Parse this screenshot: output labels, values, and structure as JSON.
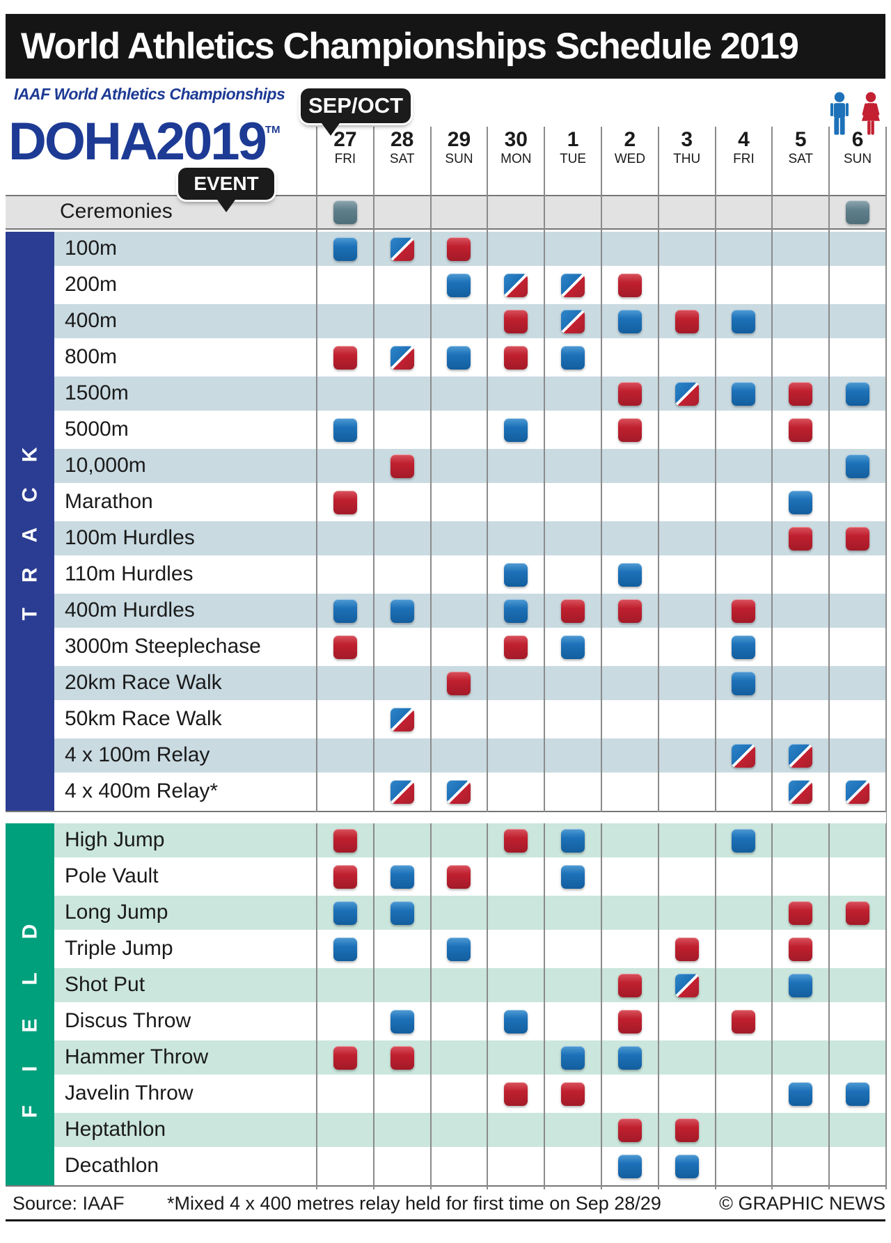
{
  "title": "World Athletics Championships Schedule 2019",
  "logo": {
    "line1": "IAAF World Athletics Championships",
    "line2": "DOHA2019",
    "tm": "TM"
  },
  "callouts": {
    "month": "SEP/OCT",
    "event": "EVENT"
  },
  "days": [
    {
      "date": "27",
      "day": "FRI"
    },
    {
      "date": "28",
      "day": "SAT"
    },
    {
      "date": "29",
      "day": "SUN"
    },
    {
      "date": "30",
      "day": "MON"
    },
    {
      "date": "1",
      "day": "TUE"
    },
    {
      "date": "2",
      "day": "WED"
    },
    {
      "date": "3",
      "day": "THU"
    },
    {
      "date": "4",
      "day": "FRI"
    },
    {
      "date": "5",
      "day": "SAT"
    },
    {
      "date": "6",
      "day": "SUN"
    }
  ],
  "legend": {
    "men_color": "#1d71b8",
    "women_color": "#c32031",
    "ceremony_color": "#5d7c88",
    "track_bar_color": "#2b3d92",
    "field_bar_color": "#00a07d",
    "track_shade_color": "#c9dae1",
    "field_shade_color": "#cbe6dc"
  },
  "ceremonies": {
    "label": "Ceremonies",
    "cells": {
      "0": "ceremony",
      "9": "ceremony"
    }
  },
  "sections": [
    {
      "label": "TRACK",
      "bar_color": "#2b3d92",
      "shade_color": "#c9dae1",
      "letter_spacing": "36px",
      "rows": [
        {
          "label": "100m",
          "cells": {
            "0": "men",
            "1": "both",
            "2": "women"
          }
        },
        {
          "label": "200m",
          "cells": {
            "2": "men",
            "3": "both",
            "4": "both",
            "5": "women"
          }
        },
        {
          "label": "400m",
          "cells": {
            "3": "women",
            "4": "both",
            "5": "men",
            "6": "women",
            "7": "men"
          }
        },
        {
          "label": "800m",
          "cells": {
            "0": "women",
            "1": "both",
            "2": "men",
            "3": "women",
            "4": "men"
          }
        },
        {
          "label": "1500m",
          "cells": {
            "5": "women",
            "6": "both",
            "7": "men",
            "8": "women",
            "9": "men"
          }
        },
        {
          "label": "5000m",
          "cells": {
            "0": "men",
            "3": "men",
            "5": "women",
            "8": "women"
          }
        },
        {
          "label": "10,000m",
          "cells": {
            "1": "women",
            "9": "men"
          }
        },
        {
          "label": "Marathon",
          "cells": {
            "0": "women",
            "8": "men"
          }
        },
        {
          "label": "100m Hurdles",
          "cells": {
            "8": "women",
            "9": "women"
          }
        },
        {
          "label": "110m Hurdles",
          "cells": {
            "3": "men",
            "5": "men"
          }
        },
        {
          "label": "400m Hurdles",
          "cells": {
            "0": "men",
            "1": "men",
            "3": "men",
            "4": "women",
            "5": "women",
            "7": "women"
          }
        },
        {
          "label": "3000m Steeplechase",
          "cells": {
            "0": "women",
            "3": "women",
            "4": "men",
            "7": "men"
          }
        },
        {
          "label": "20km Race Walk",
          "cells": {
            "2": "women",
            "7": "men"
          }
        },
        {
          "label": "50km Race Walk",
          "cells": {
            "1": "both"
          }
        },
        {
          "label": "4 x 100m Relay",
          "cells": {
            "7": "both",
            "8": "both"
          }
        },
        {
          "label": "4 x 400m Relay*",
          "cells": {
            "1": "both",
            "2": "both",
            "8": "both",
            "9": "both"
          }
        }
      ]
    },
    {
      "label": "FIELD",
      "bar_color": "#00a07d",
      "shade_color": "#cbe6dc",
      "letter_spacing": "48px",
      "rows": [
        {
          "label": "High Jump",
          "cells": {
            "0": "women",
            "3": "women",
            "4": "men",
            "7": "men"
          }
        },
        {
          "label": "Pole Vault",
          "cells": {
            "0": "women",
            "1": "men",
            "2": "women",
            "4": "men"
          }
        },
        {
          "label": "Long Jump",
          "cells": {
            "0": "men",
            "1": "men",
            "8": "women",
            "9": "women"
          }
        },
        {
          "label": "Triple Jump",
          "cells": {
            "0": "men",
            "2": "men",
            "6": "women",
            "8": "women"
          }
        },
        {
          "label": "Shot Put",
          "cells": {
            "5": "women",
            "6": "both",
            "8": "men"
          }
        },
        {
          "label": "Discus Throw",
          "cells": {
            "1": "men",
            "3": "men",
            "5": "women",
            "7": "women"
          }
        },
        {
          "label": "Hammer Throw",
          "cells": {
            "0": "women",
            "1": "women",
            "4": "men",
            "5": "men"
          }
        },
        {
          "label": "Javelin Throw",
          "cells": {
            "3": "women",
            "4": "women",
            "8": "men",
            "9": "men"
          }
        },
        {
          "label": "Heptathlon",
          "cells": {
            "5": "women",
            "6": "women"
          }
        },
        {
          "label": "Decathlon",
          "cells": {
            "5": "men",
            "6": "men"
          }
        }
      ]
    }
  ],
  "footer": {
    "source": "Source: IAAF",
    "note": "*Mixed 4 x 400 metres relay held for first time on Sep 28/29",
    "credit": "© GRAPHIC NEWS"
  }
}
